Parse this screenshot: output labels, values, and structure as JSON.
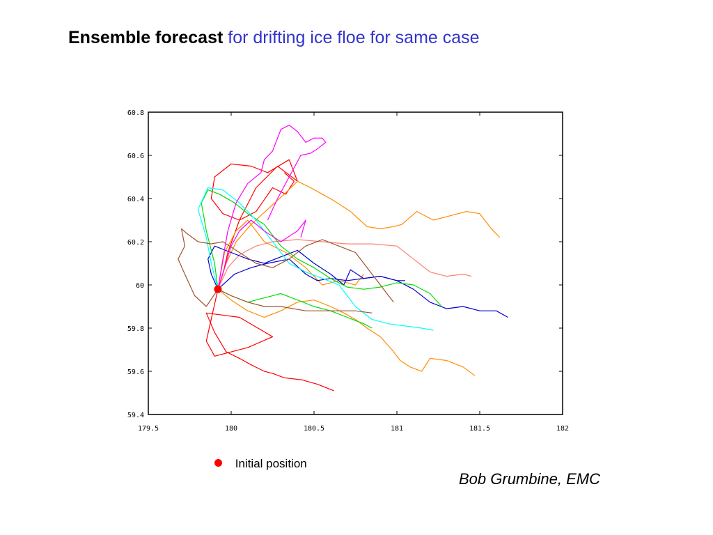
{
  "slide": {
    "title_bold": "Ensemble forecast",
    "title_rest": "for drifting ice floe for same case",
    "legend_label": "Initial position",
    "author": "Bob Grumbine, EMC"
  },
  "colors": {
    "title_bold": "#000000",
    "title_rest": "#3333cc",
    "initial_marker": "#ff0000"
  },
  "chart_data": {
    "type": "line",
    "title": "",
    "xlabel": "",
    "ylabel": "",
    "xlim": [
      179.5,
      182
    ],
    "ylim": [
      59.4,
      60.8
    ],
    "xticks": [
      179.5,
      180,
      180.5,
      181,
      181.5,
      182
    ],
    "xtick_labels": [
      "179.5",
      "180",
      "180.5",
      "181",
      "181.5",
      "182"
    ],
    "yticks": [
      59.4,
      59.6,
      59.8,
      60,
      60.2,
      60.4,
      60.6,
      60.8
    ],
    "ytick_labels": [
      "59.4",
      "59.6",
      "59.8",
      "60",
      "60.2",
      "60.4",
      "60.6",
      "60.8"
    ],
    "grid": false,
    "initial_position": {
      "x": 179.92,
      "y": 59.98,
      "label": "Initial position"
    },
    "series": [
      {
        "color": "#ff0000",
        "x": [
          179.92,
          179.85,
          179.9,
          180.1,
          180.25,
          180.05,
          179.85,
          179.9,
          179.97,
          180.05,
          180.12,
          180.2,
          180.25,
          180.32,
          180.43,
          180.52,
          180.62
        ],
        "y": [
          59.98,
          59.74,
          59.67,
          59.71,
          59.76,
          59.85,
          59.87,
          59.78,
          59.69,
          59.66,
          59.63,
          59.6,
          59.59,
          59.57,
          59.56,
          59.54,
          59.51
        ]
      },
      {
        "color": "#ff0000",
        "x": [
          179.92,
          179.95,
          179.98,
          180.05,
          180.15,
          180.28,
          180.4,
          180.35,
          180.22,
          180.12,
          180.0,
          179.9,
          179.88,
          179.95,
          180.05,
          180.15,
          180.25,
          180.33,
          180.38,
          180.32
        ],
        "y": [
          59.98,
          60.05,
          60.15,
          60.3,
          60.45,
          60.55,
          60.48,
          60.58,
          60.52,
          60.55,
          60.56,
          60.5,
          60.4,
          60.33,
          60.3,
          60.34,
          60.45,
          60.42,
          60.48,
          60.52
        ]
      },
      {
        "color": "#ff8c00",
        "x": [
          179.92,
          179.97,
          180.03,
          180.12,
          180.22,
          180.32,
          180.4,
          180.48,
          180.55,
          180.62,
          180.72,
          180.82,
          180.9,
          180.98,
          181.03,
          181.12,
          181.22,
          181.32,
          181.42,
          181.5,
          181.55,
          181.57,
          181.62
        ],
        "y": [
          59.98,
          60.1,
          60.2,
          60.28,
          60.35,
          60.42,
          60.48,
          60.45,
          60.42,
          60.39,
          60.34,
          60.27,
          60.26,
          60.27,
          60.28,
          60.34,
          60.3,
          60.32,
          60.34,
          60.33,
          60.28,
          60.26,
          60.22
        ]
      },
      {
        "color": "#ff8c00",
        "x": [
          179.92,
          180.0,
          180.1,
          180.2,
          180.3,
          180.4,
          180.5,
          180.6,
          180.68,
          180.75,
          180.82,
          180.9,
          180.97,
          181.02,
          181.08,
          181.15,
          181.2,
          181.3,
          181.4,
          181.47
        ],
        "y": [
          59.98,
          59.93,
          59.88,
          59.85,
          59.88,
          59.92,
          59.93,
          59.9,
          59.87,
          59.84,
          59.8,
          59.76,
          59.7,
          59.65,
          59.62,
          59.6,
          59.66,
          59.65,
          59.62,
          59.58
        ]
      },
      {
        "color": "#ff8c00",
        "x": [
          179.92,
          179.96,
          180.03,
          180.1,
          180.2,
          180.33,
          180.45,
          180.55,
          180.65,
          180.75,
          180.8
        ],
        "y": [
          59.98,
          60.15,
          60.25,
          60.3,
          60.2,
          60.15,
          60.08,
          60.0,
          60.02,
          60.0,
          60.05
        ]
      },
      {
        "color": "#fa8072",
        "x": [
          179.92,
          179.98,
          180.05,
          180.15,
          180.25,
          180.4,
          180.55,
          180.7,
          180.85,
          181.0,
          181.1,
          181.2,
          181.3,
          181.4,
          181.45
        ],
        "y": [
          59.98,
          60.08,
          60.14,
          60.18,
          60.2,
          60.21,
          60.2,
          60.19,
          60.19,
          60.18,
          60.12,
          60.06,
          60.04,
          60.05,
          60.04
        ]
      },
      {
        "color": "#0000cd",
        "x": [
          179.92,
          179.88,
          179.86,
          179.9,
          180.0,
          180.1,
          180.2,
          180.3,
          180.4,
          180.5,
          180.6,
          180.68,
          180.72,
          180.8,
          180.9,
          181.0,
          181.1,
          181.2,
          181.3,
          181.4,
          181.5,
          181.6,
          181.67
        ],
        "y": [
          59.98,
          60.05,
          60.12,
          60.18,
          60.15,
          60.12,
          60.1,
          60.13,
          60.16,
          60.1,
          60.05,
          60.0,
          60.07,
          60.03,
          60.04,
          60.02,
          59.98,
          59.92,
          59.89,
          59.9,
          59.88,
          59.88,
          59.85
        ]
      },
      {
        "color": "#0000cd",
        "x": [
          179.92,
          180.02,
          180.12,
          180.22,
          180.35,
          180.45,
          180.52,
          180.6,
          180.7,
          180.8,
          180.9,
          181.0,
          181.05
        ],
        "y": [
          59.98,
          60.05,
          60.08,
          60.1,
          60.12,
          60.05,
          60.02,
          60.03,
          60.02,
          60.03,
          60.04,
          60.02,
          60.02
        ]
      },
      {
        "color": "#00dd00",
        "x": [
          179.92,
          179.9,
          179.85,
          179.82,
          179.86,
          179.93,
          180.02,
          180.1,
          180.2,
          180.3,
          180.4,
          180.5,
          180.6,
          180.7,
          180.8,
          180.9,
          181.0,
          181.1,
          181.2,
          181.27
        ],
        "y": [
          59.98,
          60.1,
          60.25,
          60.38,
          60.44,
          60.42,
          60.38,
          60.33,
          60.28,
          60.18,
          60.12,
          60.08,
          60.03,
          59.99,
          59.98,
          59.99,
          60.01,
          60.0,
          59.96,
          59.9
        ]
      },
      {
        "color": "#00dd00",
        "x": [
          179.92,
          180.0,
          180.1,
          180.2,
          180.3,
          180.4,
          180.5,
          180.6,
          180.7,
          180.8,
          180.85
        ],
        "y": [
          59.98,
          59.95,
          59.92,
          59.94,
          59.96,
          59.93,
          59.9,
          59.88,
          59.85,
          59.82,
          59.8
        ]
      },
      {
        "color": "#00ffff",
        "x": [
          179.92,
          179.88,
          179.85,
          179.8,
          179.86,
          179.95,
          180.05,
          180.15,
          180.25,
          180.35,
          180.45,
          180.55,
          180.65,
          180.75,
          180.85,
          180.95,
          181.05,
          181.15,
          181.22
        ],
        "y": [
          59.98,
          60.1,
          60.22,
          60.35,
          60.45,
          60.44,
          60.38,
          60.3,
          60.2,
          60.1,
          60.06,
          60.03,
          60.0,
          59.9,
          59.84,
          59.82,
          59.81,
          59.8,
          59.79
        ]
      },
      {
        "color": "#ff00ff",
        "x": [
          179.92,
          179.95,
          179.98,
          180.03,
          180.1,
          180.18,
          180.2,
          180.25,
          180.28,
          180.3,
          180.35,
          180.4,
          180.45,
          180.5,
          180.55,
          180.57,
          180.52,
          180.48,
          180.42,
          180.35,
          180.28,
          180.22
        ],
        "y": [
          59.98,
          60.12,
          60.25,
          60.38,
          60.47,
          60.52,
          60.58,
          60.62,
          60.68,
          60.72,
          60.74,
          60.71,
          60.66,
          60.68,
          60.68,
          60.66,
          60.63,
          60.61,
          60.6,
          60.5,
          60.4,
          60.3
        ]
      },
      {
        "color": "#ff00ff",
        "x": [
          179.92,
          179.96,
          180.0,
          180.05,
          180.12,
          180.2,
          180.3,
          180.4,
          180.45,
          180.42
        ],
        "y": [
          59.98,
          60.08,
          60.18,
          60.25,
          60.3,
          60.25,
          60.2,
          60.25,
          60.3,
          60.22
        ]
      },
      {
        "color": "#a0522d",
        "x": [
          179.92,
          179.85,
          179.78,
          179.72,
          179.68,
          179.72,
          179.7,
          179.73,
          179.8,
          179.88,
          179.95,
          180.05,
          180.15,
          180.25,
          180.35,
          180.45,
          180.55,
          180.65,
          180.75,
          180.85,
          180.98
        ],
        "y": [
          59.98,
          59.9,
          59.95,
          60.05,
          60.12,
          60.18,
          60.26,
          60.24,
          60.2,
          60.19,
          60.2,
          60.15,
          60.1,
          60.08,
          60.12,
          60.18,
          60.21,
          60.18,
          60.15,
          60.05,
          59.92
        ]
      },
      {
        "color": "#a0522d",
        "x": [
          179.92,
          180.0,
          180.1,
          180.2,
          180.3,
          180.45,
          180.6,
          180.75,
          180.85
        ],
        "y": [
          59.98,
          59.95,
          59.92,
          59.9,
          59.9,
          59.88,
          59.88,
          59.88,
          59.87
        ]
      }
    ]
  }
}
